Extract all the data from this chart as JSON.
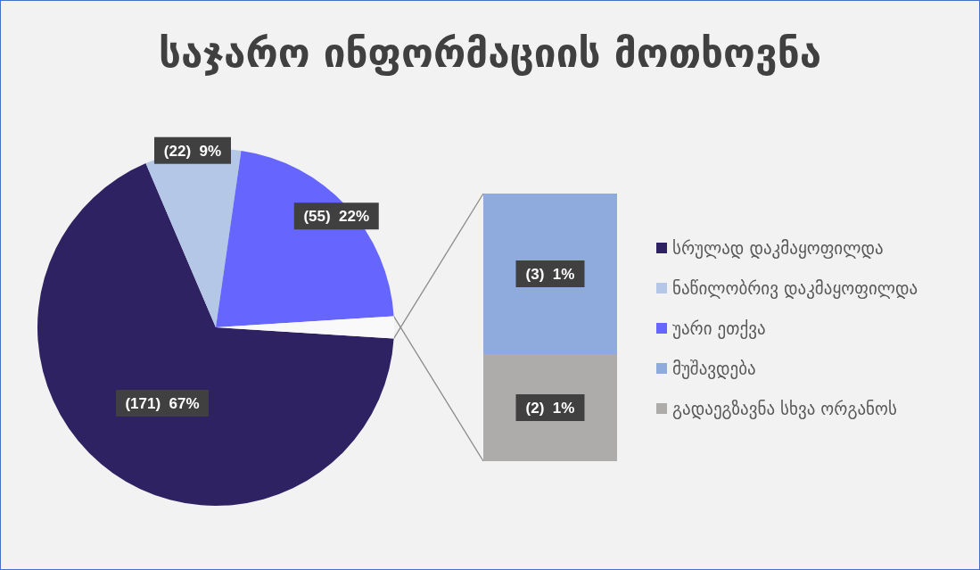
{
  "chart_data": [
    {
      "type": "pie",
      "title": "საჯარო ინფორმაციის მოთხოვნა",
      "categories": [
        "სრულად დაკმაყოფილდა",
        "ნაწილობრივ დაკმაყოფილდა",
        "უარი ეთქვა",
        null
      ],
      "values": [
        171,
        22,
        55,
        5
      ],
      "colors": [
        "#2e2262",
        "#b4c7e7",
        "#6666ff",
        "#f9f9f9"
      ],
      "value_labels": [
        "(171)  67%",
        "(22)  9%",
        "(55)  22%",
        null
      ],
      "legend": "right"
    },
    {
      "type": "bar",
      "stacked": true,
      "categories": [
        null
      ],
      "series": [
        {
          "name": "გადაეგზავნა სხვა ორგანოს",
          "color": "#aeabab",
          "values": [
            2
          ],
          "value_labels": [
            "(2)  1%"
          ]
        },
        {
          "name": "მუშავდება",
          "color": "#8faadc",
          "values": [
            3
          ],
          "value_labels": [
            "(3)  1%"
          ]
        }
      ],
      "legend": "right"
    }
  ]
}
